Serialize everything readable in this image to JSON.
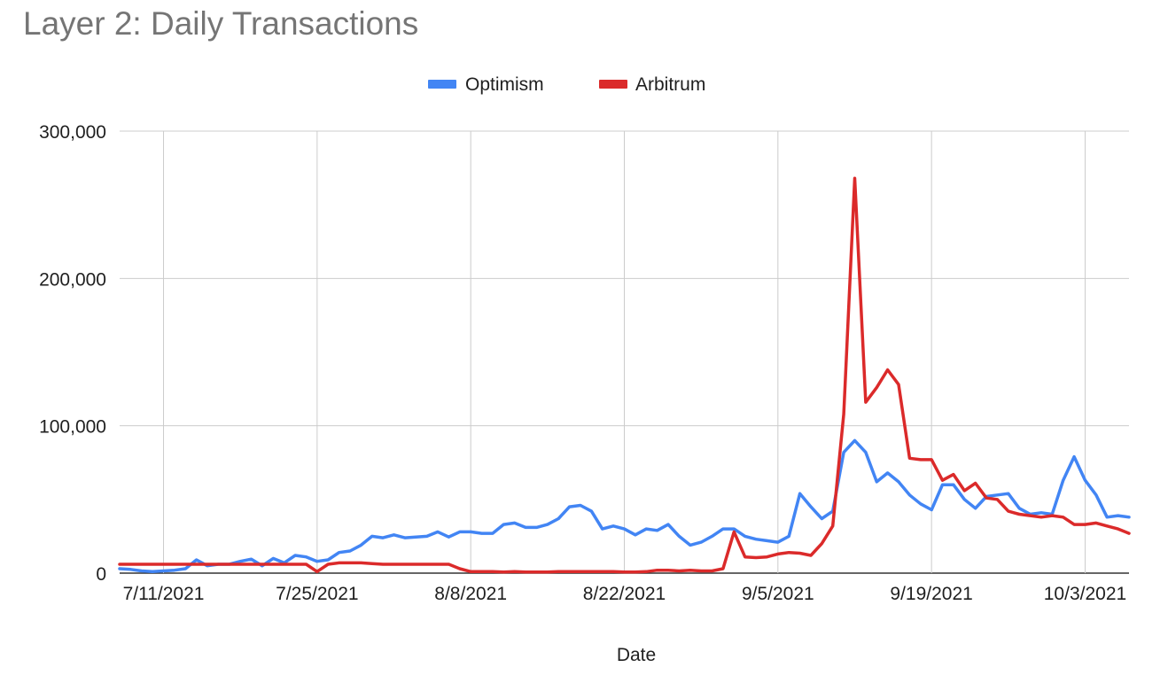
{
  "chart_data": {
    "type": "line",
    "title": "Layer 2: Daily Transactions",
    "xlabel": "Date",
    "ylabel": "",
    "ylim": [
      0,
      300000
    ],
    "x_start": "7/7/2021",
    "y_ticks": [
      {
        "value": 0,
        "label": "0"
      },
      {
        "value": 100000,
        "label": "100,000"
      },
      {
        "value": 200000,
        "label": "200,000"
      },
      {
        "value": 300000,
        "label": "300,000"
      }
    ],
    "x_ticks": [
      {
        "value": "7/11/2021",
        "label": "7/11/2021"
      },
      {
        "value": "7/25/2021",
        "label": "7/25/2021"
      },
      {
        "value": "8/8/2021",
        "label": "8/8/2021"
      },
      {
        "value": "8/22/2021",
        "label": "8/22/2021"
      },
      {
        "value": "9/5/2021",
        "label": "9/5/2021"
      },
      {
        "value": "9/19/2021",
        "label": "9/19/2021"
      },
      {
        "value": "10/3/2021",
        "label": "10/3/2021"
      }
    ],
    "grid": true,
    "legend_position": "top",
    "series": [
      {
        "name": "Optimism",
        "color": "#4285f4",
        "values": [
          3000,
          2500,
          1500,
          1000,
          1500,
          2000,
          3000,
          9000,
          5000,
          6000,
          6000,
          8000,
          9500,
          5000,
          10000,
          7000,
          12000,
          11000,
          8000,
          9000,
          14000,
          15000,
          19000,
          25000,
          24000,
          26000,
          24000,
          24500,
          25000,
          28000,
          24500,
          28000,
          28000,
          27000,
          27000,
          33000,
          34000,
          31000,
          31000,
          33000,
          37000,
          45000,
          46000,
          42000,
          30000,
          32000,
          30000,
          26000,
          30000,
          29000,
          33000,
          25000,
          19000,
          21000,
          25000,
          30000,
          30000,
          25000,
          23000,
          22000,
          21000,
          25000,
          54000,
          45000,
          37000,
          42000,
          82000,
          90000,
          82000,
          62000,
          68000,
          62000,
          53000,
          47000,
          43000,
          60000,
          60000,
          50000,
          44000,
          52000,
          53000,
          54000,
          44000,
          40000,
          41000,
          40000,
          63000,
          79000,
          63000,
          53000,
          38000,
          39000,
          38000
        ]
      },
      {
        "name": "Arbitrum",
        "color": "#db2a2a",
        "values": [
          6000,
          6000,
          6000,
          6000,
          6000,
          6000,
          6000,
          6000,
          6000,
          6000,
          6000,
          6000,
          6000,
          6000,
          6000,
          6000,
          6000,
          6000,
          1000,
          6000,
          7000,
          7000,
          7000,
          6500,
          6000,
          6000,
          6000,
          6000,
          6000,
          6000,
          6000,
          3000,
          1000,
          1000,
          1000,
          800,
          1000,
          800,
          800,
          800,
          1000,
          1000,
          1000,
          1000,
          1000,
          1000,
          800,
          800,
          1000,
          2000,
          2000,
          1500,
          2000,
          1500,
          1500,
          3000,
          28000,
          11000,
          10500,
          11000,
          13000,
          14000,
          13500,
          12000,
          20000,
          32000,
          108000,
          268000,
          116000,
          126000,
          138000,
          128000,
          78000,
          77000,
          77000,
          63000,
          67000,
          56000,
          61000,
          51000,
          50000,
          42000,
          40000,
          39000,
          38000,
          39000,
          38000,
          33000,
          33000,
          34000,
          32000,
          30000,
          27000
        ]
      }
    ]
  }
}
